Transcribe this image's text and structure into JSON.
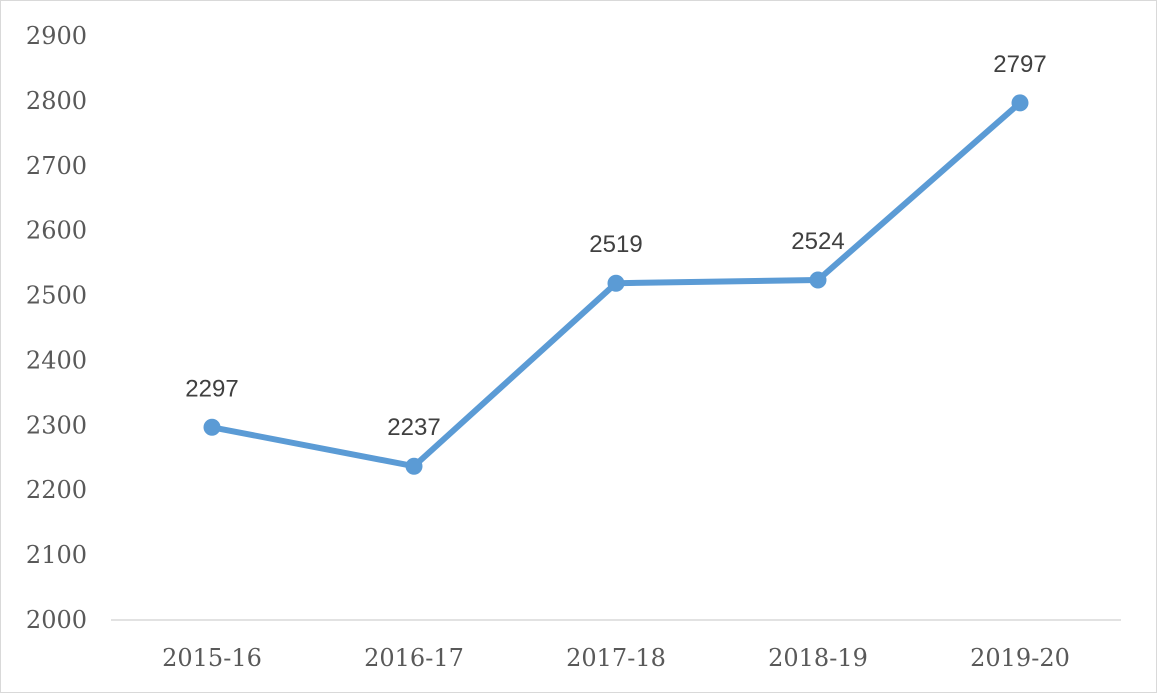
{
  "colors": {
    "series": "#5b9bd5",
    "axis": "#d9d9d9",
    "text": "#595959",
    "label": "#404040"
  },
  "chart_data": {
    "type": "line",
    "categories": [
      "2015-16",
      "2016-17",
      "2017-18",
      "2018-19",
      "2019-20"
    ],
    "series": [
      {
        "values": [
          2297,
          2237,
          2519,
          2524,
          2797
        ]
      }
    ],
    "data_labels": [
      "2297",
      "2237",
      "2519",
      "2524",
      "2797"
    ],
    "y_ticks": [
      "2000",
      "2100",
      "2200",
      "2300",
      "2400",
      "2500",
      "2600",
      "2700",
      "2800",
      "2900"
    ],
    "ylim": [
      2000,
      2900
    ],
    "grid": false,
    "legend": "none",
    "markers": true
  }
}
